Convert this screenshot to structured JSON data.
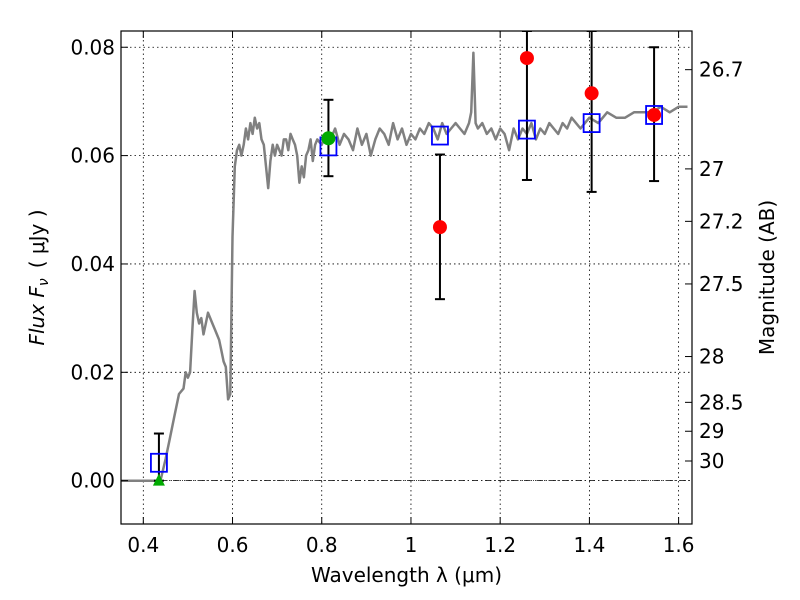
{
  "chart_data": {
    "type": "scatter",
    "xlabel": "Wavelength  λ (μm)",
    "ylabel": "Flux  F",
    "ylabel_sub": "ν",
    "ylabel_unit": "( μJy )",
    "ylabel_right": "Magnitude (AB)",
    "xlim": [
      0.35,
      1.63
    ],
    "ylim": [
      -0.008,
      0.083
    ],
    "x_ticks": [
      {
        "v": 0.4,
        "label": "0.4"
      },
      {
        "v": 0.6,
        "label": "0.6"
      },
      {
        "v": 0.8,
        "label": "0.8"
      },
      {
        "v": 1.0,
        "label": "1"
      },
      {
        "v": 1.2,
        "label": "1.2"
      },
      {
        "v": 1.4,
        "label": "1.4"
      },
      {
        "v": 1.6,
        "label": "1.6"
      }
    ],
    "y_ticks": [
      {
        "v": 0.0,
        "label": "0.00"
      },
      {
        "v": 0.02,
        "label": "0.02"
      },
      {
        "v": 0.04,
        "label": "0.04"
      },
      {
        "v": 0.06,
        "label": "0.06"
      },
      {
        "v": 0.08,
        "label": "0.08"
      }
    ],
    "mag_ticks": [
      {
        "mag": 26.7,
        "label": "26.7"
      },
      {
        "mag": 27,
        "label": "27"
      },
      {
        "mag": 27.2,
        "label": "27.2"
      },
      {
        "mag": 27.5,
        "label": "27.5"
      },
      {
        "mag": 28,
        "label": "28"
      },
      {
        "mag": 28.5,
        "label": "28.5"
      },
      {
        "mag": 29,
        "label": "29"
      },
      {
        "mag": 30,
        "label": "30"
      }
    ],
    "grid": true,
    "zero_line": true,
    "colors": {
      "model": "#808080",
      "observed": "#ff0000",
      "model_photometry": "#0000ff",
      "detection": "#00aa00",
      "upper_limit": "#00aa00",
      "errorbar": "#000000"
    },
    "model_sed": {
      "x": [
        0.35,
        0.43,
        0.44,
        0.45,
        0.46,
        0.47,
        0.48,
        0.49,
        0.495,
        0.5,
        0.505,
        0.51,
        0.515,
        0.52,
        0.525,
        0.53,
        0.535,
        0.54,
        0.545,
        0.55,
        0.555,
        0.56,
        0.565,
        0.57,
        0.575,
        0.58,
        0.585,
        0.59,
        0.595,
        0.6,
        0.605,
        0.61,
        0.615,
        0.62,
        0.625,
        0.63,
        0.635,
        0.64,
        0.645,
        0.65,
        0.655,
        0.66,
        0.665,
        0.67,
        0.675,
        0.68,
        0.685,
        0.69,
        0.695,
        0.7,
        0.705,
        0.71,
        0.715,
        0.72,
        0.725,
        0.73,
        0.735,
        0.74,
        0.745,
        0.75,
        0.755,
        0.76,
        0.765,
        0.77,
        0.775,
        0.78,
        0.785,
        0.79,
        0.8,
        0.81,
        0.82,
        0.83,
        0.84,
        0.85,
        0.86,
        0.87,
        0.88,
        0.89,
        0.9,
        0.91,
        0.92,
        0.93,
        0.94,
        0.95,
        0.96,
        0.97,
        0.98,
        0.99,
        1.0,
        1.01,
        1.02,
        1.03,
        1.04,
        1.05,
        1.06,
        1.07,
        1.08,
        1.09,
        1.1,
        1.11,
        1.12,
        1.13,
        1.135,
        1.14,
        1.145,
        1.15,
        1.16,
        1.17,
        1.18,
        1.19,
        1.2,
        1.21,
        1.22,
        1.23,
        1.24,
        1.25,
        1.26,
        1.27,
        1.28,
        1.29,
        1.3,
        1.31,
        1.32,
        1.33,
        1.34,
        1.35,
        1.36,
        1.37,
        1.38,
        1.39,
        1.4,
        1.42,
        1.44,
        1.46,
        1.48,
        1.5,
        1.52,
        1.54,
        1.56,
        1.58,
        1.6,
        1.62
      ],
      "y": [
        0.0,
        0.0,
        0.0005,
        0.004,
        0.008,
        0.012,
        0.016,
        0.017,
        0.02,
        0.019,
        0.02,
        0.028,
        0.035,
        0.031,
        0.029,
        0.03,
        0.027,
        0.029,
        0.031,
        0.03,
        0.029,
        0.028,
        0.027,
        0.026,
        0.024,
        0.022,
        0.021,
        0.015,
        0.016,
        0.045,
        0.058,
        0.061,
        0.062,
        0.06,
        0.062,
        0.065,
        0.063,
        0.066,
        0.064,
        0.067,
        0.065,
        0.066,
        0.063,
        0.062,
        0.058,
        0.054,
        0.059,
        0.062,
        0.06,
        0.062,
        0.061,
        0.06,
        0.063,
        0.063,
        0.061,
        0.064,
        0.063,
        0.062,
        0.06,
        0.055,
        0.058,
        0.056,
        0.06,
        0.061,
        0.063,
        0.059,
        0.062,
        0.063,
        0.062,
        0.064,
        0.063,
        0.065,
        0.062,
        0.064,
        0.063,
        0.061,
        0.065,
        0.062,
        0.064,
        0.06,
        0.063,
        0.065,
        0.064,
        0.062,
        0.066,
        0.063,
        0.065,
        0.062,
        0.064,
        0.063,
        0.065,
        0.064,
        0.066,
        0.065,
        0.063,
        0.066,
        0.064,
        0.065,
        0.066,
        0.065,
        0.064,
        0.066,
        0.068,
        0.079,
        0.066,
        0.065,
        0.066,
        0.064,
        0.065,
        0.063,
        0.065,
        0.064,
        0.061,
        0.065,
        0.063,
        0.065,
        0.064,
        0.066,
        0.063,
        0.065,
        0.064,
        0.066,
        0.065,
        0.064,
        0.066,
        0.065,
        0.067,
        0.066,
        0.065,
        0.066,
        0.067,
        0.066,
        0.068,
        0.067,
        0.067,
        0.068,
        0.068,
        0.068,
        0.069,
        0.068,
        0.069,
        0.069
      ]
    },
    "model_photometry": {
      "x": [
        0.435,
        0.815,
        1.065,
        1.26,
        1.405,
        1.545
      ],
      "y": [
        0.0033,
        0.0617,
        0.0637,
        0.0648,
        0.066,
        0.0675
      ]
    },
    "observed": {
      "x": [
        1.065,
        1.26,
        1.405,
        1.545
      ],
      "y": [
        0.0468,
        0.078,
        0.0715,
        0.0675
      ],
      "err_low": [
        0.0335,
        0.0555,
        0.0533,
        0.0553
      ],
      "err_high": [
        0.0602,
        0.083,
        0.083,
        0.08
      ]
    },
    "detection": {
      "x": [
        0.815
      ],
      "y": [
        0.0632
      ],
      "err_low": [
        0.0562
      ],
      "err_high": [
        0.0703
      ]
    },
    "upper_limit": {
      "x": [
        0.435
      ],
      "y": [
        0.0
      ],
      "err_high": [
        0.0087
      ]
    }
  }
}
